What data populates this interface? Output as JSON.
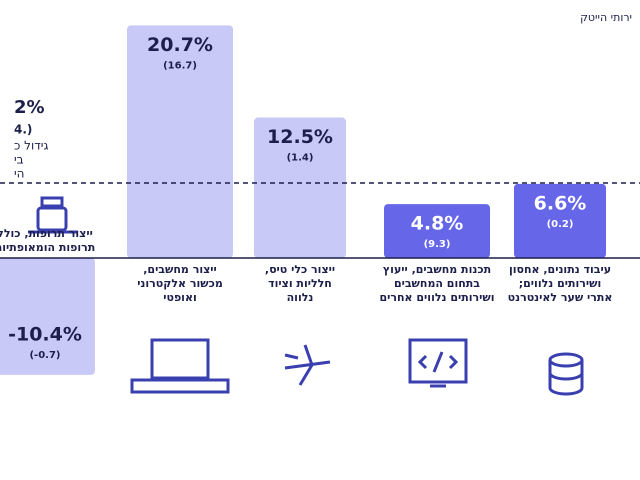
{
  "chart_data": {
    "type": "bar",
    "header_fragment": "ירותי הייטק",
    "side_fragments": [
      "2%",
      "(.4",
      "גידול כ",
      "בי",
      "הי"
    ],
    "categories": [
      [
        "ייצור תרופות, כולל",
        "תרופות הומאופתיות"
      ],
      [
        "ייצור מחשבים,",
        "מכשור אלקטרוני",
        "ואופטי"
      ],
      [
        "ייצור כלי טיס,",
        "חלליות וציוד",
        "נלווה"
      ],
      [
        "תכנות מחשבים, ייעוץ",
        "בתחום המחשבים",
        "ושירותים נלווים אחרים"
      ],
      [
        "עיבוד נתונים, אחסון",
        "ושירותים נלווים;",
        "אתרי שער לאינטרנט"
      ]
    ],
    "values": [
      -10.4,
      20.7,
      12.5,
      4.8,
      6.6
    ],
    "value_labels": [
      "-10.4%",
      "20.7%",
      "12.5%",
      "4.8%",
      "6.6%"
    ],
    "sublabels": [
      "(-0.7)",
      "(16.7)",
      "(1.4)",
      "(9.3)",
      "(0.2)"
    ],
    "colors": [
      "#c9c9f7",
      "#c9c9f7",
      "#c9c9f7",
      "#6567e8",
      "#6567e8"
    ],
    "ylim": [
      -19.75,
      21
    ]
  }
}
